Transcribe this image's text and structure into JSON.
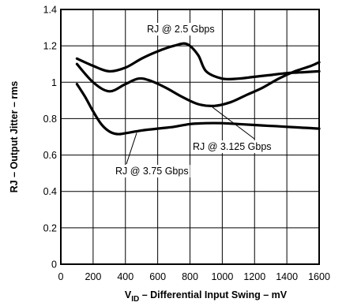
{
  "chart_data": {
    "type": "line",
    "xlabel_prefix": "V",
    "xlabel_sub": "ID",
    "xlabel_rest": " – Differential Input Swing – mV",
    "ylabel": "RJ – Output Jitter – rms",
    "xlim": [
      0,
      1600
    ],
    "ylim": [
      0,
      1.4
    ],
    "x_ticks": [
      0,
      200,
      400,
      600,
      800,
      1000,
      1200,
      1400,
      1600
    ],
    "x_tick_labels": [
      "0",
      "200",
      "400",
      "600",
      "800",
      "1000",
      "1200",
      "1400",
      "1600"
    ],
    "y_ticks": [
      0,
      0.2,
      0.4,
      0.6,
      0.8,
      1.0,
      1.2,
      1.4
    ],
    "y_tick_labels": [
      "0",
      "0.2",
      "0.4",
      "0.6",
      "0.8",
      "1",
      "1.2",
      "1.4"
    ],
    "grid": true,
    "series": [
      {
        "name": "RJ @ 2.5 Gbps",
        "x": [
          100,
          200,
          300,
          400,
          500,
          600,
          700,
          780,
          850,
          900,
          1000,
          1100,
          1200,
          1300,
          1400,
          1500,
          1600
        ],
        "y": [
          1.13,
          1.09,
          1.06,
          1.08,
          1.13,
          1.17,
          1.2,
          1.21,
          1.15,
          1.06,
          1.02,
          1.02,
          1.03,
          1.04,
          1.05,
          1.055,
          1.06
        ]
      },
      {
        "name": "RJ @ 3.125 Gbps",
        "x": [
          100,
          200,
          300,
          400,
          480,
          550,
          650,
          750,
          850,
          950,
          1050,
          1150,
          1250,
          1350,
          1450,
          1550,
          1600
        ],
        "y": [
          1.1,
          1.0,
          0.95,
          0.99,
          1.02,
          1.01,
          0.97,
          0.92,
          0.88,
          0.87,
          0.89,
          0.93,
          0.97,
          1.02,
          1.06,
          1.09,
          1.11
        ]
      },
      {
        "name": "RJ @ 3.75 Gbps",
        "x": [
          100,
          150,
          200,
          250,
          300,
          350,
          400,
          500,
          600,
          700,
          800,
          900,
          1000,
          1100,
          1200,
          1300,
          1400,
          1500,
          1600
        ],
        "y": [
          0.99,
          0.92,
          0.84,
          0.77,
          0.73,
          0.715,
          0.72,
          0.735,
          0.745,
          0.755,
          0.77,
          0.775,
          0.775,
          0.77,
          0.765,
          0.76,
          0.755,
          0.75,
          0.745
        ]
      }
    ],
    "annotations": [
      {
        "text": "RJ @ 2.5 Gbps",
        "series": 0
      },
      {
        "text": "RJ @ 3.125 Gbps",
        "series": 1
      },
      {
        "text": "RJ @ 3.75 Gbps",
        "series": 2
      }
    ]
  }
}
